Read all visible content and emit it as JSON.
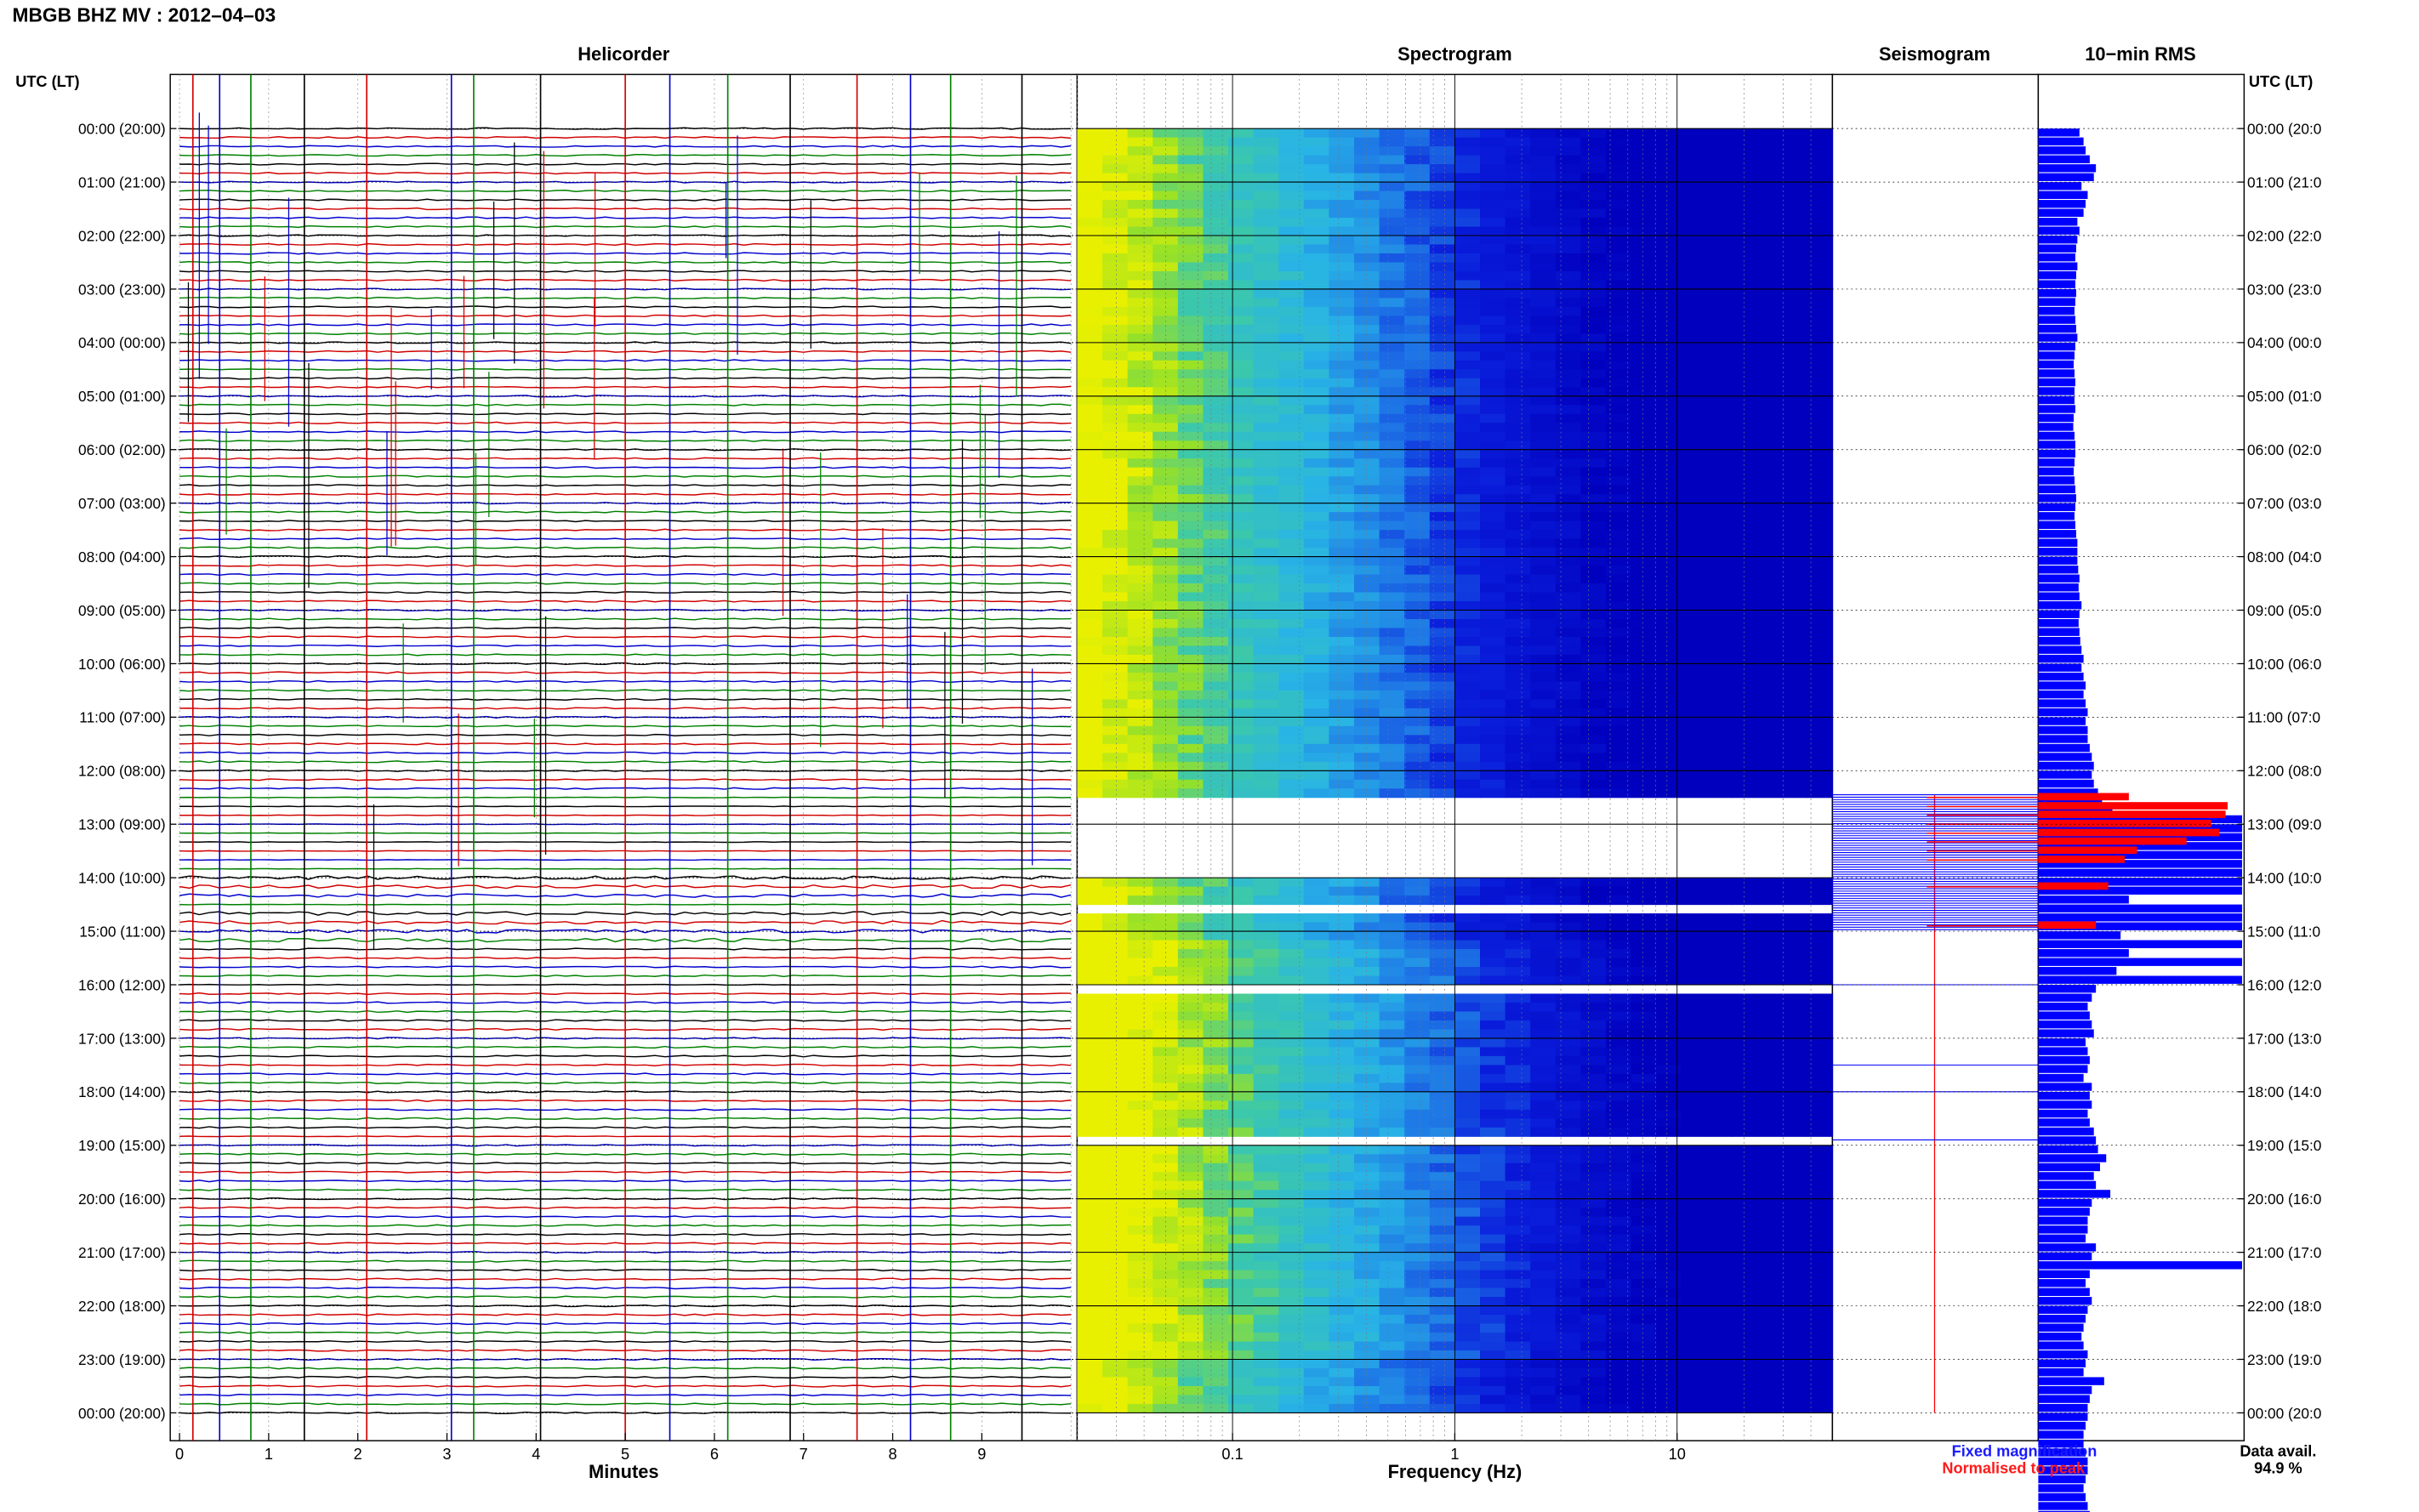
{
  "header": {
    "title": "MBGB BHZ MV : 2012–04–03"
  },
  "panels": {
    "helicorder": "Helicorder",
    "spectrogram": "Spectrogram",
    "seismogram": "Seismogram",
    "rms": "10−min RMS"
  },
  "axes": {
    "left_label": "UTC (LT)",
    "right_label": "UTC (LT)",
    "minutes_label": "Minutes",
    "frequency_label": "Frequency (Hz)"
  },
  "legend": {
    "fixed": "Fixed magnification",
    "normalised": "Normalised to peak",
    "fixed_color": "#1a1aff",
    "normalised_color": "#ff1a1a"
  },
  "availability": {
    "label": "Data avail.",
    "value": "94.9 %"
  },
  "colors": {
    "trace_cycle": [
      "#000000",
      "#d00000",
      "#0000cc",
      "#008000"
    ],
    "spectrogram_low": "#e8f000",
    "spectrogram_mid": "#20c8e8",
    "spectrogram_high": "#0000e0",
    "rms_fixed": "#0000ff",
    "rms_normalised": "#ff0000"
  },
  "chart_data": {
    "type": "heatmap",
    "time_labels": [
      "00:00 (20:00)",
      "01:00 (21:00)",
      "02:00 (22:00)",
      "03:00 (23:00)",
      "04:00 (00:00)",
      "05:00 (01:00)",
      "06:00 (02:00)",
      "07:00 (03:00)",
      "08:00 (04:00)",
      "09:00 (05:00)",
      "10:00 (06:00)",
      "11:00 (07:00)",
      "12:00 (08:00)",
      "13:00 (09:00)",
      "14:00 (10:00)",
      "15:00 (11:00)",
      "16:00 (12:00)",
      "17:00 (13:00)",
      "18:00 (14:00)",
      "19:00 (15:00)",
      "20:00 (16:00)",
      "21:00 (17:00)",
      "22:00 (18:00)",
      "23:00 (19:00)",
      "00:00 (20:00)"
    ],
    "right_time_labels": [
      "00:00 (20:0",
      "01:00 (21:0",
      "02:00 (22:0",
      "03:00 (23:0",
      "04:00 (00:0",
      "05:00 (01:0",
      "06:00 (02:0",
      "07:00 (03:0",
      "08:00 (04:0",
      "09:00 (05:0",
      "10:00 (06:0",
      "11:00 (07:0",
      "12:00 (08:0",
      "13:00 (09:0",
      "14:00 (10:0",
      "15:00 (11:0",
      "16:00 (12:0",
      "17:00 (13:0",
      "18:00 (14:0",
      "19:00 (15:0",
      "20:00 (16:0",
      "21:00 (17:0",
      "22:00 (18:0",
      "23:00 (19:0",
      "00:00 (20:0"
    ],
    "minute_ticks": [
      "0",
      "1",
      "2",
      "3",
      "4",
      "5",
      "6",
      "7",
      "8",
      "9"
    ],
    "frequency_ticks": [
      "0.1",
      "1",
      "10"
    ],
    "frequency_tick_values": [
      0.1,
      1,
      10
    ],
    "frequency_range": [
      0.02,
      50
    ],
    "minutes_range": [
      0,
      10
    ],
    "hours_range": [
      0,
      24
    ],
    "rms_10min_fixed": [
      1.0,
      1.1,
      1.15,
      1.25,
      1.4,
      1.35,
      1.05,
      1.2,
      1.15,
      1.1,
      0.95,
      1.0,
      0.95,
      0.92,
      0.9,
      0.95,
      0.92,
      0.9,
      0.92,
      0.9,
      0.88,
      0.9,
      0.92,
      0.95,
      0.9,
      0.88,
      0.86,
      0.88,
      0.9,
      0.88,
      0.88,
      0.9,
      0.86,
      0.85,
      0.88,
      0.9,
      0.9,
      0.88,
      0.86,
      0.88,
      0.9,
      0.92,
      0.9,
      0.88,
      0.9,
      0.92,
      0.95,
      0.95,
      0.95,
      0.97,
      1.0,
      0.98,
      1.0,
      1.05,
      1.0,
      0.98,
      1.0,
      1.02,
      1.05,
      1.1,
      1.05,
      1.1,
      1.15,
      1.1,
      1.15,
      1.2,
      1.15,
      1.2,
      1.2,
      1.25,
      1.3,
      1.35,
      1.3,
      1.35,
      1.45,
      1.55,
      1.8,
      4.95,
      4.95,
      4.95,
      4.95,
      4.95,
      4.95,
      4.95,
      4.95,
      4.95,
      2.2,
      4.95,
      4.95,
      4.95,
      2.0,
      4.95,
      2.2,
      4.95,
      1.9,
      4.95,
      1.4,
      1.3,
      1.2,
      1.25,
      1.3,
      1.35,
      1.15,
      1.2,
      1.25,
      1.2,
      1.1,
      1.3,
      1.25,
      1.3,
      1.2,
      1.25,
      1.35,
      1.4,
      1.45,
      1.65,
      1.5,
      1.35,
      1.4,
      1.75,
      1.3,
      1.25,
      1.2,
      1.2,
      1.15,
      1.4,
      1.3,
      4.95,
      1.25,
      1.15,
      1.25,
      1.3,
      1.2,
      1.15,
      1.1,
      1.05,
      1.1,
      1.2,
      1.15,
      1.1,
      1.6,
      1.3,
      1.25,
      1.2,
      1.2,
      1.15,
      1.1,
      1.1,
      1.15,
      1.2,
      1.2,
      1.15,
      1.1,
      1.15,
      1.2,
      1.25,
      1.2,
      1.15,
      1.1,
      1.15,
      1.1,
      1.2
    ],
    "rms_normalised_segments": [
      {
        "hour": 12.5,
        "level": 2.2
      },
      {
        "hour": 12.67,
        "level": 4.6
      },
      {
        "hour": 12.83,
        "level": 4.55
      },
      {
        "hour": 13.0,
        "level": 4.2
      },
      {
        "hour": 13.17,
        "level": 4.4
      },
      {
        "hour": 13.33,
        "level": 3.6
      },
      {
        "hour": 13.5,
        "level": 2.4
      },
      {
        "hour": 13.67,
        "level": 2.1
      },
      {
        "hour": 14.17,
        "level": 1.7
      },
      {
        "hour": 14.9,
        "level": 1.4
      }
    ],
    "gaps_hours": [
      [
        12.42,
        13.95
      ],
      [
        14.02,
        14.04
      ],
      [
        14.12,
        14.16
      ],
      [
        14.3,
        14.33
      ],
      [
        14.52,
        14.56
      ],
      [
        14.78,
        14.82
      ],
      [
        16.05,
        16.09
      ],
      [
        16.95,
        17.0
      ],
      [
        17.75,
        17.85
      ],
      [
        17.95,
        18.0
      ],
      [
        18.5,
        18.54
      ],
      [
        18.88,
        18.9
      ]
    ],
    "events_minutes": [
      0.15,
      0.45,
      0.8,
      1.4,
      2.1,
      3.05,
      3.3,
      4.05,
      5.0,
      5.5,
      6.15,
      6.85,
      7.6,
      8.2,
      8.65,
      9.45
    ]
  }
}
